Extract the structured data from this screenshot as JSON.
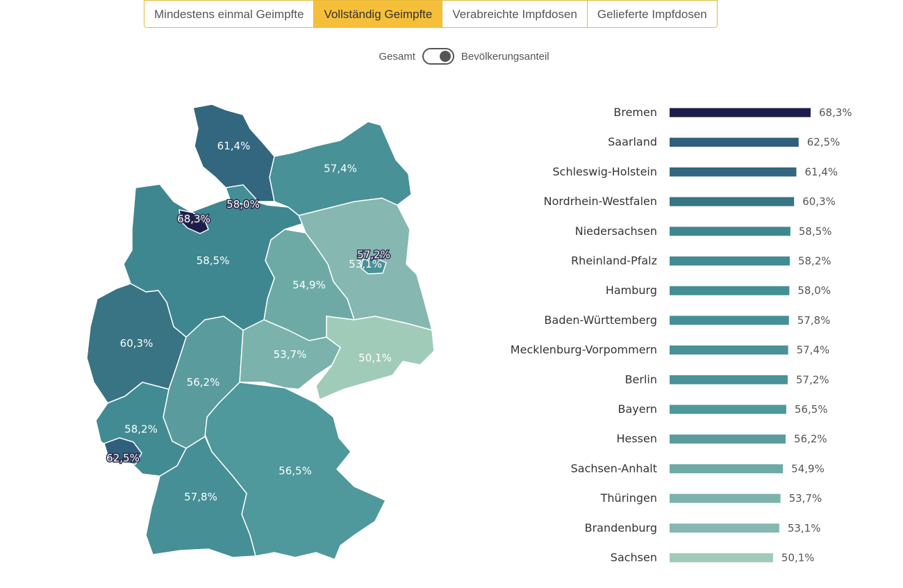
{
  "tabs": [
    {
      "label": "Mindestens einmal Geimpfte",
      "active": false
    },
    {
      "label": "Vollständig Geimpfte",
      "active": true
    },
    {
      "label": "Verabreichte Impfdosen",
      "active": false
    },
    {
      "label": "Gelieferte Impfdosen",
      "active": false
    }
  ],
  "toggle": {
    "left_label": "Gesamt",
    "right_label": "Bevölkerungsanteil",
    "state": "right"
  },
  "colors": {
    "Bremen": "#1d1d4b",
    "Saarland": "#2f5f7c",
    "Schleswig-Holstein": "#32677f",
    "Nordrhein-Westfalen": "#387483",
    "Niedersachsen": "#3f8790",
    "Rheinland-Pfalz": "#428b93",
    "Hamburg": "#448e95",
    "Baden-Württemberg": "#468f96",
    "Mecklenburg-Vorpommern": "#479197",
    "Berlin": "#489298",
    "Bayern": "#4f989b",
    "Hessen": "#5a9c9d",
    "Sachsen-Anhalt": "#6daaa6",
    "Thüringen": "#7bb2ac",
    "Brandenburg": "#86b7b0",
    "Sachsen": "#a1cbb9"
  },
  "chart_data": {
    "type": "bar",
    "orientation": "horizontal",
    "unit": "%",
    "xlim": [
      0,
      68.3
    ],
    "categories": [
      "Bremen",
      "Saarland",
      "Schleswig-Holstein",
      "Nordrhein-Westfalen",
      "Niedersachsen",
      "Rheinland-Pfalz",
      "Hamburg",
      "Baden-Württemberg",
      "Mecklenburg-Vorpommern",
      "Berlin",
      "Bayern",
      "Hessen",
      "Sachsen-Anhalt",
      "Thüringen",
      "Brandenburg",
      "Sachsen"
    ],
    "values": [
      68.3,
      62.5,
      61.4,
      60.3,
      58.5,
      58.2,
      58.0,
      57.8,
      57.4,
      57.2,
      56.5,
      56.2,
      54.9,
      53.7,
      53.1,
      50.1
    ],
    "value_labels": [
      "68,3%",
      "62,5%",
      "61,4%",
      "60,3%",
      "58,5%",
      "58,2%",
      "58,0%",
      "57,8%",
      "57,4%",
      "57,2%",
      "56,5%",
      "56,2%",
      "54,9%",
      "53,7%",
      "53,1%",
      "50,1%"
    ]
  },
  "map_regions": [
    {
      "state": "Schleswig-Holstein",
      "label": "61,4%"
    },
    {
      "state": "Hamburg",
      "label": "58,0%"
    },
    {
      "state": "Mecklenburg-Vorpommern",
      "label": "57,4%"
    },
    {
      "state": "Bremen",
      "label": "68,3%"
    },
    {
      "state": "Niedersachsen",
      "label": "58,5%"
    },
    {
      "state": "Berlin",
      "label": "57,2%"
    },
    {
      "state": "Brandenburg",
      "label": "53,1%"
    },
    {
      "state": "Sachsen-Anhalt",
      "label": "54,9%"
    },
    {
      "state": "Nordrhein-Westfalen",
      "label": "60,3%"
    },
    {
      "state": "Sachsen",
      "label": "50,1%"
    },
    {
      "state": "Hessen",
      "label": "56,2%"
    },
    {
      "state": "Thüringen",
      "label": "53,7%"
    },
    {
      "state": "Rheinland-Pfalz",
      "label": "58,2%"
    },
    {
      "state": "Saarland",
      "label": "62,5%"
    },
    {
      "state": "Baden-Württemberg",
      "label": "57,8%"
    },
    {
      "state": "Bayern",
      "label": "56,5%"
    }
  ]
}
